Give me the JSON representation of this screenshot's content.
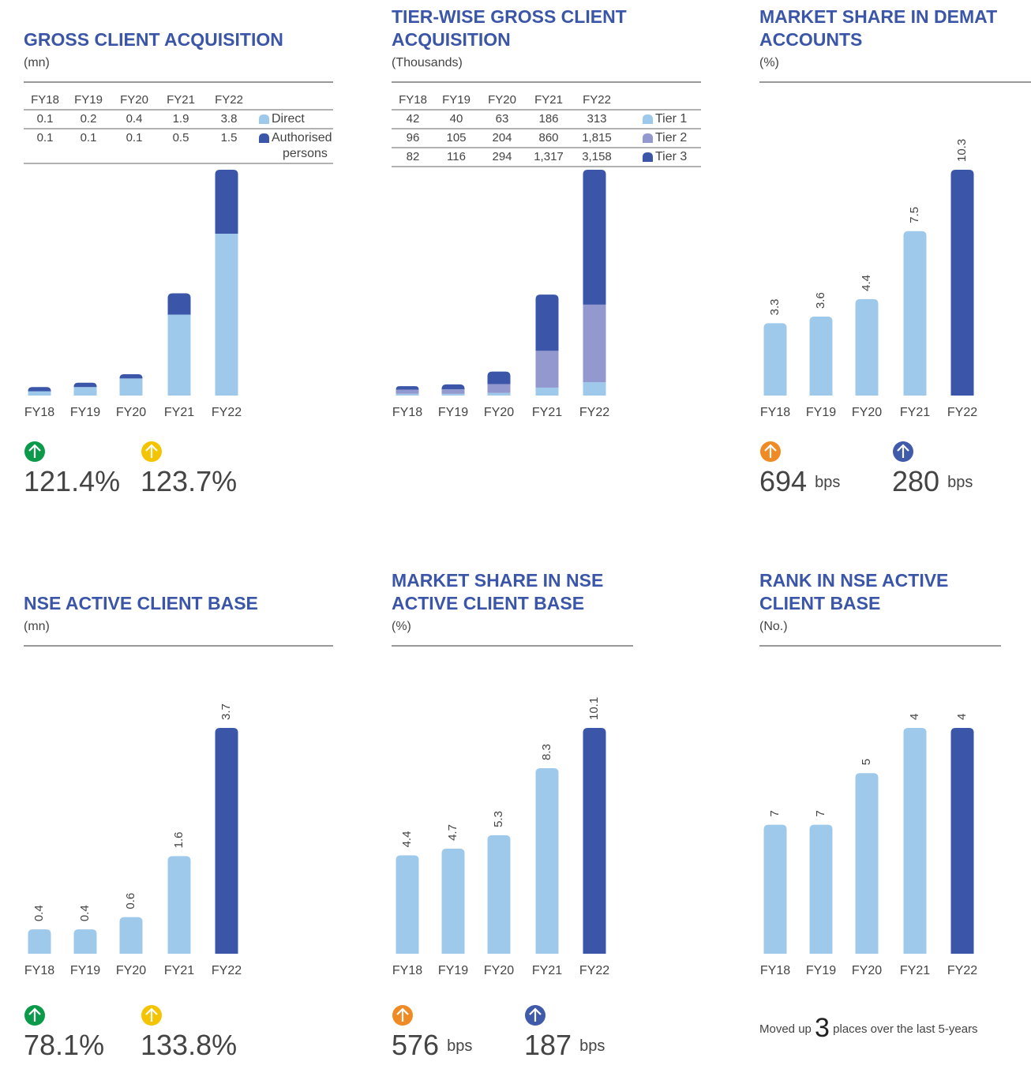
{
  "chart_data": [
    {
      "type": "bar",
      "title": "GROSS CLIENT ACQUISITION",
      "subtitle": "(mn)",
      "categories": [
        "FY18",
        "FY19",
        "FY20",
        "FY21",
        "FY22"
      ],
      "series": [
        {
          "name": "Direct",
          "color": "#9fc9ea",
          "values": [
            0.1,
            0.2,
            0.4,
            1.9,
            3.8
          ]
        },
        {
          "name": "Authorised persons",
          "color": "#3b56a8",
          "values": [
            0.1,
            0.1,
            0.1,
            0.5,
            1.5
          ]
        }
      ],
      "stats": [
        {
          "label": "121.4%",
          "color": "#0b9a4a"
        },
        {
          "label": "123.7%",
          "color": "#f5c400"
        }
      ]
    },
    {
      "type": "bar",
      "title": "TIER-WISE GROSS CLIENT ACQUISITION",
      "subtitle": "(Thousands)",
      "categories": [
        "FY18",
        "FY19",
        "FY20",
        "FY21",
        "FY22"
      ],
      "series": [
        {
          "name": "Tier 1",
          "color": "#9fc9ea",
          "values": [
            42,
            40,
            63,
            186,
            313
          ]
        },
        {
          "name": "Tier 2",
          "color": "#9399cf",
          "values": [
            96,
            105,
            204,
            860,
            1815
          ],
          "value_labels": [
            "96",
            "105",
            "204",
            "860",
            "1,815"
          ]
        },
        {
          "name": "Tier 3",
          "color": "#3b56a8",
          "values": [
            82,
            116,
            294,
            1317,
            3158
          ],
          "value_labels": [
            "82",
            "116",
            "294",
            "1,317",
            "3,158"
          ]
        }
      ]
    },
    {
      "type": "bar",
      "title": "MARKET SHARE IN DEMAT ACCOUNTS",
      "subtitle": "(%)",
      "categories": [
        "FY18",
        "FY19",
        "FY20",
        "FY21",
        "FY22"
      ],
      "values": [
        3.3,
        3.6,
        4.4,
        7.5,
        10.3
      ],
      "colors": [
        "#9fc9ea",
        "#9fc9ea",
        "#9fc9ea",
        "#9fc9ea",
        "#3b56a8"
      ],
      "stats": [
        {
          "label": "694",
          "unit": "bps",
          "color": "#f08a24"
        },
        {
          "label": "280",
          "unit": "bps",
          "color": "#3f5ba9"
        }
      ]
    },
    {
      "type": "bar",
      "title": "NSE ACTIVE CLIENT BASE",
      "subtitle": "(mn)",
      "categories": [
        "FY18",
        "FY19",
        "FY20",
        "FY21",
        "FY22"
      ],
      "values": [
        0.4,
        0.4,
        0.6,
        1.6,
        3.7
      ],
      "colors": [
        "#9fc9ea",
        "#9fc9ea",
        "#9fc9ea",
        "#9fc9ea",
        "#3b56a8"
      ],
      "stats": [
        {
          "label": "78.1%",
          "color": "#0b9a4a"
        },
        {
          "label": "133.8%",
          "color": "#f5c400"
        }
      ]
    },
    {
      "type": "bar",
      "title": "MARKET SHARE IN NSE ACTIVE CLIENT BASE",
      "subtitle": "(%)",
      "categories": [
        "FY18",
        "FY19",
        "FY20",
        "FY21",
        "FY22"
      ],
      "values": [
        4.4,
        4.7,
        5.3,
        8.3,
        10.1
      ],
      "colors": [
        "#9fc9ea",
        "#9fc9ea",
        "#9fc9ea",
        "#9fc9ea",
        "#3b56a8"
      ],
      "stats": [
        {
          "label": "576",
          "unit": "bps",
          "color": "#f08a24"
        },
        {
          "label": "187",
          "unit": "bps",
          "color": "#3f5ba9"
        }
      ]
    },
    {
      "type": "bar",
      "title": "RANK IN NSE ACTIVE CLIENT BASE",
      "subtitle": "(No.)",
      "categories": [
        "FY18",
        "FY19",
        "FY20",
        "FY21",
        "FY22"
      ],
      "values": [
        7,
        7,
        5,
        4,
        4
      ],
      "inverted": true,
      "colors": [
        "#9fc9ea",
        "#9fc9ea",
        "#9fc9ea",
        "#9fc9ea",
        "#3b56a8"
      ],
      "note": {
        "before": "Moved up",
        "number": 3,
        "after": "places over the last 5-years"
      }
    }
  ]
}
